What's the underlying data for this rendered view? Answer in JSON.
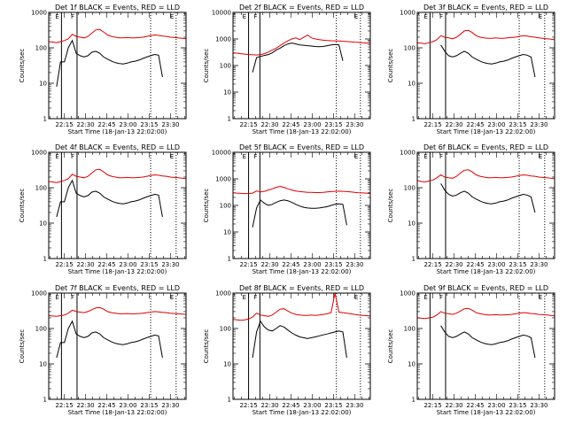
{
  "figure": {
    "title": "",
    "series_colors": {
      "events": "#000000",
      "lld": "#e00000"
    }
  },
  "chart_data": [
    {
      "type": "line",
      "title": "Det 1f BLACK = Events, RED = LLD",
      "xlabel": "Start Time (18-Jan-13 22:02:00)",
      "ylabel": "Counts/sec",
      "yscale": "log",
      "ylim": [
        1,
        1000
      ],
      "xlim": [
        "22:04",
        "23:41"
      ],
      "yticks": [
        "1",
        "10",
        "100",
        "1000"
      ],
      "xticks": [
        "22:15",
        "22:30",
        "22:45",
        "23:00",
        "23:15",
        "23:30"
      ],
      "vlines_solid": [
        "22:13",
        "22:24"
      ],
      "vlines_dotted": [
        "23:16",
        "23:34"
      ],
      "annotations": [
        "E",
        "F",
        "E"
      ],
      "series": [
        {
          "key": "lld",
          "values": [
            150,
            145,
            140,
            150,
            160,
            180,
            240,
            210,
            200,
            190,
            210,
            260,
            320,
            330,
            280,
            230,
            210,
            200,
            190,
            190,
            195,
            190,
            190,
            195,
            200,
            210,
            220,
            230,
            225,
            215,
            210,
            200,
            195,
            190,
            185,
            180
          ]
        },
        {
          "key": "events",
          "values": [
            null,
            null,
            8,
            40,
            40,
            100,
            160,
            70,
            60,
            55,
            60,
            75,
            80,
            70,
            55,
            48,
            42,
            38,
            36,
            35,
            37,
            40,
            42,
            45,
            50,
            55,
            60,
            65,
            62,
            15,
            null,
            null,
            null,
            null,
            null,
            null
          ]
        }
      ]
    },
    {
      "type": "line",
      "title": "Det 2f BLACK = Events, RED = LLD",
      "xlabel": "Start Time (18-Jan-13 22:02:00)",
      "ylabel": "Counts/sec",
      "yscale": "log",
      "ylim": [
        1,
        10000
      ],
      "xlim": [
        "22:04",
        "23:41"
      ],
      "yticks": [
        "1",
        "10",
        "100",
        "1000",
        "10000"
      ],
      "xticks": [
        "22:15",
        "22:30",
        "22:45",
        "23:00",
        "23:15",
        "23:30"
      ],
      "vlines_solid": [
        "22:15",
        "22:23"
      ],
      "vlines_dotted": [
        "23:17",
        "23:34"
      ],
      "annotations": [
        "E",
        "F",
        "E"
      ],
      "series": [
        {
          "key": "lld",
          "values": [
            300,
            290,
            280,
            270,
            260,
            255,
            250,
            260,
            280,
            320,
            380,
            450,
            560,
            700,
            850,
            1000,
            1100,
            950,
            1150,
            1400,
            1100,
            1000,
            950,
            900,
            880,
            860,
            850,
            840,
            820,
            800,
            780,
            760,
            740,
            720,
            700,
            690
          ]
        },
        {
          "key": "events",
          "values": [
            null,
            null,
            null,
            null,
            null,
            55,
            200,
            220,
            240,
            260,
            300,
            380,
            450,
            560,
            650,
            700,
            650,
            600,
            580,
            560,
            540,
            520,
            510,
            520,
            560,
            600,
            620,
            600,
            150,
            null,
            null,
            null,
            null,
            null,
            null,
            null
          ]
        }
      ]
    },
    {
      "type": "line",
      "title": "Det 3f BLACK = Events, RED = LLD",
      "xlabel": "Start Time (18-Jan-13 22:02:00)",
      "ylabel": "Counts/sec",
      "yscale": "log",
      "ylim": [
        1,
        1000
      ],
      "xlim": [
        "22:04",
        "23:41"
      ],
      "yticks": [
        "1",
        "10",
        "100",
        "1000"
      ],
      "xticks": [
        "22:15",
        "22:30",
        "22:45",
        "23:00",
        "23:15",
        "23:30"
      ],
      "vlines_solid": [
        "22:13",
        "22:24"
      ],
      "vlines_dotted": [
        "23:16",
        "23:34"
      ],
      "annotations": [
        "E",
        "F",
        "E"
      ],
      "series": [
        {
          "key": "lld",
          "values": [
            140,
            135,
            130,
            140,
            150,
            170,
            220,
            200,
            190,
            180,
            200,
            240,
            300,
            310,
            270,
            220,
            200,
            190,
            185,
            185,
            190,
            185,
            185,
            190,
            195,
            200,
            210,
            220,
            215,
            205,
            200,
            190,
            185,
            180,
            175,
            170
          ]
        },
        {
          "key": "events",
          "values": [
            null,
            null,
            null,
            null,
            null,
            null,
            120,
            80,
            60,
            55,
            60,
            70,
            80,
            70,
            55,
            48,
            42,
            38,
            36,
            35,
            37,
            40,
            42,
            45,
            50,
            55,
            60,
            65,
            62,
            55,
            15,
            null,
            null,
            null,
            null,
            null
          ]
        }
      ]
    },
    {
      "type": "line",
      "title": "Det 4f BLACK = Events, RED = LLD",
      "xlabel": "Start Time (18-Jan-13 22:02:00)",
      "ylabel": "Counts/sec",
      "yscale": "log",
      "ylim": [
        1,
        1000
      ],
      "xlim": [
        "22:04",
        "23:41"
      ],
      "yticks": [
        "1",
        "10",
        "100",
        "1000"
      ],
      "xticks": [
        "22:15",
        "22:30",
        "22:45",
        "23:00",
        "23:15",
        "23:30"
      ],
      "vlines_solid": [
        "22:13",
        "22:24"
      ],
      "vlines_dotted": [
        "23:16",
        "23:34"
      ],
      "annotations": [
        "E",
        "F",
        "E"
      ],
      "series": [
        {
          "key": "lld",
          "values": [
            150,
            145,
            140,
            150,
            160,
            180,
            240,
            210,
            200,
            190,
            210,
            260,
            320,
            330,
            280,
            230,
            210,
            200,
            190,
            190,
            195,
            190,
            190,
            195,
            200,
            210,
            220,
            230,
            225,
            215,
            210,
            200,
            195,
            190,
            185,
            180
          ]
        },
        {
          "key": "events",
          "values": [
            null,
            null,
            15,
            40,
            40,
            100,
            160,
            70,
            60,
            55,
            60,
            75,
            80,
            70,
            55,
            48,
            42,
            38,
            36,
            35,
            37,
            40,
            42,
            45,
            50,
            55,
            60,
            65,
            62,
            15,
            null,
            null,
            null,
            null,
            null,
            null
          ]
        }
      ]
    },
    {
      "type": "line",
      "title": "Det 5f BLACK = Events, RED = LLD",
      "xlabel": "Start Time (18-Jan-13 22:02:00)",
      "ylabel": "Counts/sec",
      "yscale": "log",
      "ylim": [
        1,
        10000
      ],
      "xlim": [
        "22:04",
        "23:41"
      ],
      "yticks": [
        "1",
        "10",
        "100",
        "1000",
        "10000"
      ],
      "xticks": [
        "22:15",
        "22:30",
        "22:45",
        "23:00",
        "23:15",
        "23:30"
      ],
      "vlines_solid": [
        "22:15",
        "22:23"
      ],
      "vlines_dotted": [
        "23:17",
        "23:34"
      ],
      "annotations": [
        "E",
        "F",
        "E"
      ],
      "series": [
        {
          "key": "lld",
          "values": [
            300,
            290,
            285,
            280,
            280,
            290,
            350,
            320,
            340,
            380,
            420,
            480,
            520,
            480,
            420,
            380,
            350,
            330,
            320,
            310,
            310,
            305,
            305,
            310,
            320,
            330,
            340,
            345,
            340,
            330,
            320,
            310,
            300,
            295,
            290,
            280
          ]
        },
        {
          "key": "events",
          "values": [
            null,
            null,
            null,
            null,
            null,
            15,
            80,
            160,
            120,
            100,
            110,
            130,
            150,
            160,
            150,
            130,
            110,
            95,
            85,
            80,
            78,
            78,
            80,
            85,
            90,
            100,
            110,
            115,
            110,
            18,
            null,
            null,
            null,
            null,
            null,
            null
          ]
        }
      ]
    },
    {
      "type": "line",
      "title": "Det 6f BLACK = Events, RED = LLD",
      "xlabel": "Start Time (18-Jan-13 22:02:00)",
      "ylabel": "Counts/sec",
      "yscale": "log",
      "ylim": [
        1,
        1000
      ],
      "xlim": [
        "22:04",
        "23:41"
      ],
      "yticks": [
        "1",
        "10",
        "100",
        "1000"
      ],
      "xticks": [
        "22:15",
        "22:30",
        "22:45",
        "23:00",
        "23:15",
        "23:30"
      ],
      "vlines_solid": [
        "22:13",
        "22:24"
      ],
      "vlines_dotted": [
        "23:16",
        "23:34"
      ],
      "annotations": [
        "E",
        "F",
        "E"
      ],
      "series": [
        {
          "key": "lld",
          "values": [
            160,
            150,
            145,
            155,
            165,
            190,
            230,
            200,
            190,
            185,
            210,
            260,
            310,
            320,
            280,
            230,
            210,
            200,
            190,
            190,
            195,
            190,
            190,
            195,
            200,
            210,
            220,
            230,
            225,
            215,
            210,
            200,
            195,
            190,
            185,
            180
          ]
        },
        {
          "key": "events",
          "values": [
            null,
            null,
            null,
            null,
            null,
            null,
            130,
            85,
            65,
            58,
            62,
            72,
            80,
            70,
            55,
            48,
            42,
            38,
            36,
            35,
            37,
            40,
            42,
            45,
            50,
            55,
            60,
            65,
            62,
            55,
            20,
            null,
            null,
            null,
            null,
            null
          ]
        }
      ]
    },
    {
      "type": "line",
      "title": "Det 7f BLACK = Events, RED = LLD",
      "xlabel": "Start Time (18-Jan-13 22:02:00)",
      "ylabel": "Counts/sec",
      "yscale": "log",
      "ylim": [
        1,
        1000
      ],
      "xlim": [
        "22:04",
        "23:41"
      ],
      "yticks": [
        "1",
        "10",
        "100",
        "1000"
      ],
      "xticks": [
        "22:15",
        "22:30",
        "22:45",
        "23:00",
        "23:15",
        "23:30"
      ],
      "vlines_solid": [
        "22:13",
        "22:24"
      ],
      "vlines_dotted": [
        "23:16",
        "23:34"
      ],
      "annotations": [
        "E",
        "F",
        "E"
      ],
      "series": [
        {
          "key": "lld",
          "values": [
            230,
            225,
            220,
            230,
            240,
            270,
            330,
            300,
            290,
            280,
            300,
            340,
            380,
            390,
            350,
            300,
            280,
            270,
            260,
            260,
            265,
            260,
            260,
            265,
            270,
            280,
            290,
            300,
            295,
            285,
            280,
            270,
            265,
            260,
            255,
            250
          ]
        },
        {
          "key": "events",
          "values": [
            null,
            null,
            15,
            40,
            40,
            100,
            160,
            70,
            60,
            55,
            60,
            75,
            80,
            70,
            55,
            48,
            42,
            38,
            36,
            35,
            37,
            40,
            42,
            45,
            50,
            55,
            60,
            65,
            62,
            15,
            null,
            null,
            null,
            null,
            null,
            null
          ]
        }
      ]
    },
    {
      "type": "line",
      "title": "Det 8f BLACK = Events, RED = LLD",
      "xlabel": "Start Time (18-Jan-13 22:02:00)",
      "ylabel": "Counts/sec",
      "yscale": "log",
      "ylim": [
        1,
        1000
      ],
      "xlim": [
        "22:04",
        "23:41"
      ],
      "yticks": [
        "1",
        "10",
        "100",
        "1000"
      ],
      "xticks": [
        "22:15",
        "22:30",
        "22:45",
        "23:00",
        "23:15",
        "23:30"
      ],
      "vlines_solid": [
        "22:15",
        "22:23"
      ],
      "vlines_dotted": [
        "23:17",
        "23:34"
      ],
      "annotations": [
        "E",
        "F",
        "E"
      ],
      "series": [
        {
          "key": "lld",
          "values": [
            180,
            175,
            170,
            175,
            185,
            210,
            270,
            240,
            230,
            220,
            240,
            290,
            350,
            360,
            310,
            270,
            250,
            240,
            235,
            235,
            240,
            235,
            240,
            250,
            260,
            280,
            1000,
            290,
            280,
            270,
            260,
            250,
            240,
            235,
            230,
            225
          ]
        },
        {
          "key": "events",
          "values": [
            null,
            null,
            null,
            null,
            null,
            15,
            80,
            160,
            110,
            90,
            85,
            100,
            120,
            110,
            90,
            75,
            65,
            58,
            55,
            52,
            55,
            58,
            62,
            66,
            70,
            75,
            80,
            85,
            80,
            15,
            null,
            null,
            null,
            null,
            null,
            null
          ]
        }
      ]
    },
    {
      "type": "line",
      "title": "Det 9f BLACK = Events, RED = LLD",
      "xlabel": "Start Time (18-Jan-13 22:02:00)",
      "ylabel": "Counts/sec",
      "yscale": "log",
      "ylim": [
        1,
        1000
      ],
      "xlim": [
        "22:04",
        "23:41"
      ],
      "yticks": [
        "1",
        "10",
        "100",
        "1000"
      ],
      "xticks": [
        "22:15",
        "22:30",
        "22:45",
        "23:00",
        "23:15",
        "23:30"
      ],
      "vlines_solid": [
        "22:13",
        "22:24"
      ],
      "vlines_dotted": [
        "23:16",
        "23:34"
      ],
      "annotations": [
        "E",
        "F",
        "E"
      ],
      "series": [
        {
          "key": "lld",
          "values": [
            200,
            195,
            190,
            200,
            210,
            240,
            300,
            270,
            260,
            250,
            270,
            310,
            360,
            370,
            330,
            280,
            260,
            250,
            240,
            240,
            245,
            240,
            240,
            245,
            250,
            260,
            270,
            280,
            275,
            265,
            260,
            250,
            245,
            240,
            235,
            230
          ]
        },
        {
          "key": "events",
          "values": [
            null,
            null,
            null,
            null,
            null,
            null,
            120,
            80,
            60,
            55,
            60,
            70,
            80,
            70,
            55,
            48,
            42,
            38,
            36,
            35,
            37,
            40,
            42,
            45,
            50,
            55,
            60,
            65,
            62,
            55,
            15,
            null,
            null,
            null,
            null,
            null
          ]
        }
      ]
    }
  ]
}
